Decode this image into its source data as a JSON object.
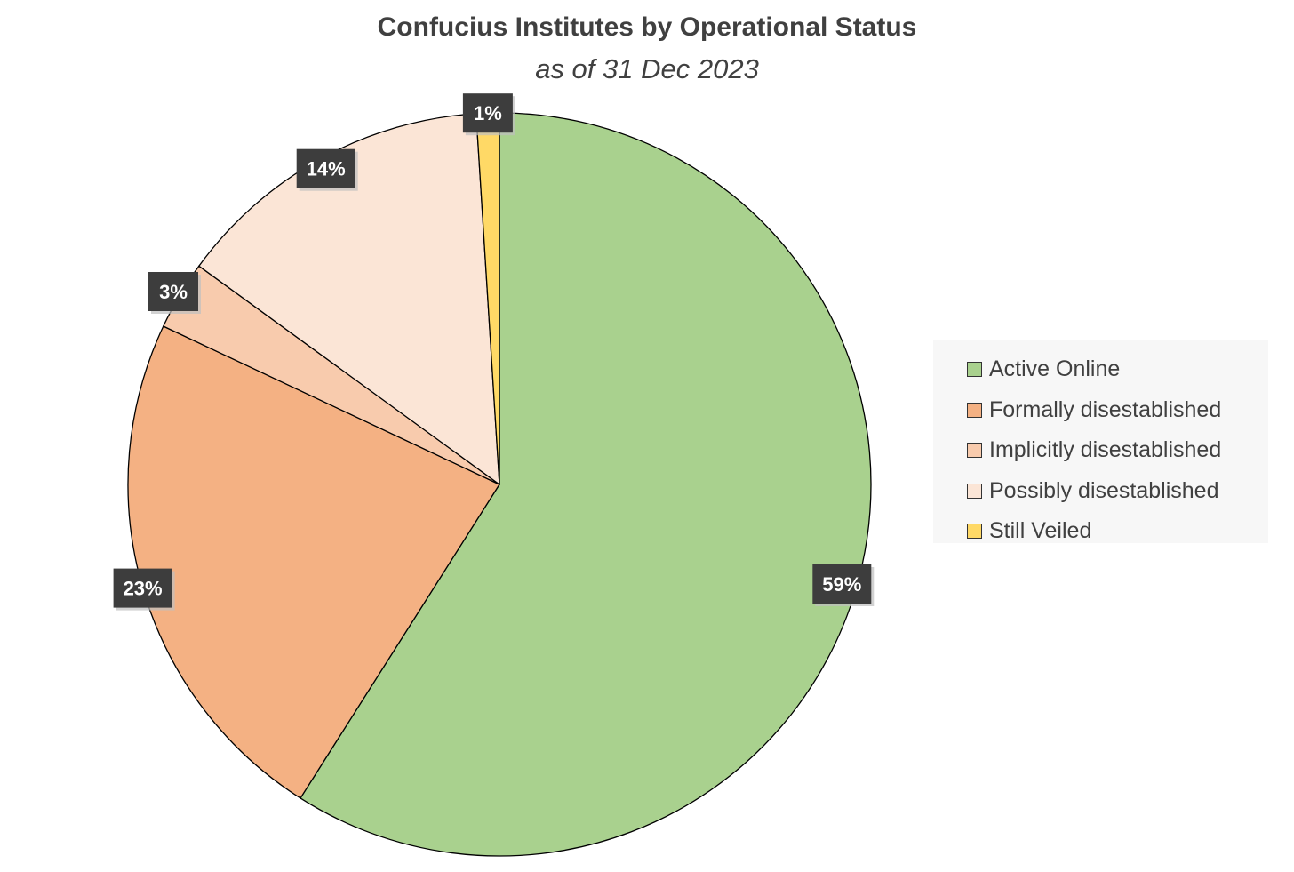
{
  "chart_data": {
    "type": "pie",
    "title": "Confucius Institutes by Operational Status",
    "subtitle": "as of 31 Dec 2023",
    "legend_position": "right",
    "slices": [
      {
        "label": "Active Online",
        "value": 59,
        "display": "59%",
        "color": "#a9d18e"
      },
      {
        "label": "Formally disestablished",
        "value": 23,
        "display": "23%",
        "color": "#f4b183"
      },
      {
        "label": "Implicitly disestablished",
        "value": 3,
        "display": "3%",
        "color": "#f8cbad"
      },
      {
        "label": "Possibly disestablished",
        "value": 14,
        "display": "14%",
        "color": "#fbe5d6"
      },
      {
        "label": "Still Veiled",
        "value": 1,
        "display": "1%",
        "color": "#ffd966"
      }
    ]
  }
}
